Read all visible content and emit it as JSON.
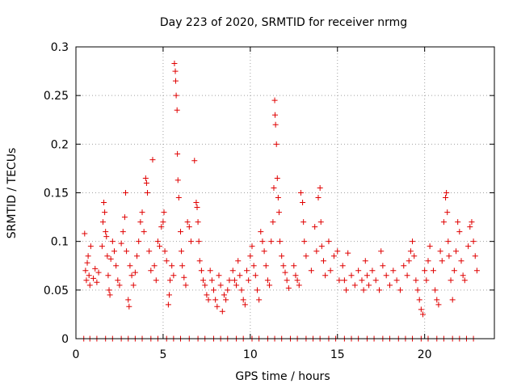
{
  "chart_data": {
    "type": "scatter",
    "title": "Day 223 of 2020, SRMTID for receiver nrmg",
    "xlabel": "GPS time / hours",
    "ylabel": "SRMTID / TECUs",
    "xlim": [
      0,
      24
    ],
    "ylim": [
      0,
      0.3
    ],
    "xticks": [
      0,
      5,
      10,
      15,
      20
    ],
    "xtick_labels": [
      "0",
      "5",
      "10",
      "15",
      "20"
    ],
    "yticks": [
      0,
      0.05,
      0.1,
      0.15,
      0.2,
      0.25,
      0.3
    ],
    "ytick_labels": [
      "0",
      "0.05",
      "0.1",
      "0.15",
      "0.2",
      "0.25",
      "0.3"
    ],
    "grid": true,
    "marker": "+",
    "color": "#e00000",
    "series": [
      {
        "name": "SRMTID",
        "points": [
          [
            0.5,
            0.108
          ],
          [
            0.55,
            0.07
          ],
          [
            0.6,
            0.06
          ],
          [
            0.65,
            0.078
          ],
          [
            0.7,
            0.085
          ],
          [
            0.75,
            0.065
          ],
          [
            0.8,
            0.055
          ],
          [
            0.85,
            0.095
          ],
          [
            1.0,
            0.062
          ],
          [
            1.1,
            0.072
          ],
          [
            1.2,
            0.058
          ],
          [
            1.3,
            0.068
          ],
          [
            1.5,
            0.095
          ],
          [
            1.55,
            0.12
          ],
          [
            1.6,
            0.14
          ],
          [
            1.65,
            0.13
          ],
          [
            1.7,
            0.11
          ],
          [
            1.75,
            0.105
          ],
          [
            1.8,
            0.085
          ],
          [
            1.85,
            0.065
          ],
          [
            1.9,
            0.05
          ],
          [
            1.95,
            0.045
          ],
          [
            2.0,
            0.082
          ],
          [
            2.1,
            0.1
          ],
          [
            2.2,
            0.09
          ],
          [
            2.3,
            0.075
          ],
          [
            2.4,
            0.06
          ],
          [
            2.5,
            0.055
          ],
          [
            2.6,
            0.098
          ],
          [
            2.7,
            0.11
          ],
          [
            2.8,
            0.125
          ],
          [
            2.85,
            0.15
          ],
          [
            2.9,
            0.09
          ],
          [
            3.0,
            0.04
          ],
          [
            3.05,
            0.033
          ],
          [
            3.1,
            0.075
          ],
          [
            3.2,
            0.065
          ],
          [
            3.3,
            0.055
          ],
          [
            3.4,
            0.068
          ],
          [
            3.5,
            0.085
          ],
          [
            3.6,
            0.1
          ],
          [
            3.7,
            0.12
          ],
          [
            3.8,
            0.13
          ],
          [
            3.9,
            0.11
          ],
          [
            4.0,
            0.165
          ],
          [
            4.05,
            0.16
          ],
          [
            4.1,
            0.15
          ],
          [
            4.2,
            0.09
          ],
          [
            4.3,
            0.07
          ],
          [
            4.4,
            0.184
          ],
          [
            4.5,
            0.075
          ],
          [
            4.6,
            0.06
          ],
          [
            4.7,
            0.1
          ],
          [
            4.8,
            0.095
          ],
          [
            4.9,
            0.115
          ],
          [
            5.0,
            0.12
          ],
          [
            5.05,
            0.13
          ],
          [
            5.1,
            0.09
          ],
          [
            5.2,
            0.08
          ],
          [
            5.3,
            0.035
          ],
          [
            5.35,
            0.045
          ],
          [
            5.4,
            0.06
          ],
          [
            5.5,
            0.075
          ],
          [
            5.6,
            0.065
          ],
          [
            5.65,
            0.283
          ],
          [
            5.7,
            0.275
          ],
          [
            5.72,
            0.265
          ],
          [
            5.75,
            0.25
          ],
          [
            5.8,
            0.235
          ],
          [
            5.82,
            0.19
          ],
          [
            5.85,
            0.163
          ],
          [
            5.9,
            0.145
          ],
          [
            6.0,
            0.11
          ],
          [
            6.05,
            0.09
          ],
          [
            6.1,
            0.075
          ],
          [
            6.2,
            0.063
          ],
          [
            6.3,
            0.055
          ],
          [
            6.4,
            0.12
          ],
          [
            6.5,
            0.115
          ],
          [
            6.6,
            0.1
          ],
          [
            6.8,
            0.183
          ],
          [
            6.9,
            0.14
          ],
          [
            6.95,
            0.135
          ],
          [
            7.0,
            0.12
          ],
          [
            7.05,
            0.1
          ],
          [
            7.1,
            0.08
          ],
          [
            7.2,
            0.07
          ],
          [
            7.3,
            0.06
          ],
          [
            7.4,
            0.055
          ],
          [
            7.5,
            0.045
          ],
          [
            7.6,
            0.04
          ],
          [
            7.7,
            0.07
          ],
          [
            7.8,
            0.06
          ],
          [
            7.9,
            0.05
          ],
          [
            8.0,
            0.04
          ],
          [
            8.1,
            0.033
          ],
          [
            8.2,
            0.065
          ],
          [
            8.3,
            0.055
          ],
          [
            8.4,
            0.028
          ],
          [
            8.5,
            0.045
          ],
          [
            8.6,
            0.04
          ],
          [
            8.7,
            0.05
          ],
          [
            8.8,
            0.06
          ],
          [
            9.0,
            0.07
          ],
          [
            9.1,
            0.06
          ],
          [
            9.2,
            0.055
          ],
          [
            9.3,
            0.08
          ],
          [
            9.4,
            0.065
          ],
          [
            9.5,
            0.05
          ],
          [
            9.6,
            0.04
          ],
          [
            9.7,
            0.035
          ],
          [
            9.8,
            0.07
          ],
          [
            9.9,
            0.06
          ],
          [
            10.0,
            0.085
          ],
          [
            10.1,
            0.095
          ],
          [
            10.2,
            0.075
          ],
          [
            10.3,
            0.065
          ],
          [
            10.4,
            0.05
          ],
          [
            10.5,
            0.04
          ],
          [
            10.6,
            0.11
          ],
          [
            10.7,
            0.1
          ],
          [
            10.8,
            0.09
          ],
          [
            10.9,
            0.075
          ],
          [
            11.0,
            0.06
          ],
          [
            11.1,
            0.055
          ],
          [
            11.2,
            0.1
          ],
          [
            11.3,
            0.12
          ],
          [
            11.35,
            0.155
          ],
          [
            11.4,
            0.245
          ],
          [
            11.42,
            0.23
          ],
          [
            11.45,
            0.22
          ],
          [
            11.5,
            0.2
          ],
          [
            11.55,
            0.165
          ],
          [
            11.6,
            0.145
          ],
          [
            11.65,
            0.13
          ],
          [
            11.7,
            0.1
          ],
          [
            11.8,
            0.085
          ],
          [
            11.9,
            0.075
          ],
          [
            12.0,
            0.068
          ],
          [
            12.1,
            0.06
          ],
          [
            12.2,
            0.052
          ],
          [
            12.5,
            0.075
          ],
          [
            12.6,
            0.065
          ],
          [
            12.7,
            0.06
          ],
          [
            12.8,
            0.055
          ],
          [
            12.9,
            0.15
          ],
          [
            13.0,
            0.14
          ],
          [
            13.05,
            0.12
          ],
          [
            13.1,
            0.1
          ],
          [
            13.2,
            0.085
          ],
          [
            13.5,
            0.07
          ],
          [
            13.7,
            0.115
          ],
          [
            13.8,
            0.09
          ],
          [
            13.9,
            0.145
          ],
          [
            14.0,
            0.155
          ],
          [
            14.05,
            0.12
          ],
          [
            14.1,
            0.095
          ],
          [
            14.2,
            0.08
          ],
          [
            14.3,
            0.065
          ],
          [
            14.5,
            0.1
          ],
          [
            14.6,
            0.07
          ],
          [
            14.8,
            0.085
          ],
          [
            15.0,
            0.09
          ],
          [
            15.1,
            0.06
          ],
          [
            15.3,
            0.075
          ],
          [
            15.4,
            0.06
          ],
          [
            15.5,
            0.05
          ],
          [
            15.6,
            0.088
          ],
          [
            15.8,
            0.065
          ],
          [
            16.0,
            0.055
          ],
          [
            16.2,
            0.07
          ],
          [
            16.4,
            0.06
          ],
          [
            16.5,
            0.05
          ],
          [
            16.6,
            0.08
          ],
          [
            16.7,
            0.065
          ],
          [
            16.8,
            0.055
          ],
          [
            17.0,
            0.07
          ],
          [
            17.2,
            0.06
          ],
          [
            17.4,
            0.05
          ],
          [
            17.5,
            0.09
          ],
          [
            17.6,
            0.075
          ],
          [
            17.8,
            0.065
          ],
          [
            18.0,
            0.055
          ],
          [
            18.2,
            0.07
          ],
          [
            18.4,
            0.06
          ],
          [
            18.6,
            0.05
          ],
          [
            18.8,
            0.075
          ],
          [
            19.0,
            0.065
          ],
          [
            19.1,
            0.08
          ],
          [
            19.2,
            0.09
          ],
          [
            19.3,
            0.1
          ],
          [
            19.4,
            0.085
          ],
          [
            19.5,
            0.06
          ],
          [
            19.6,
            0.05
          ],
          [
            19.7,
            0.04
          ],
          [
            19.8,
            0.03
          ],
          [
            19.9,
            0.025
          ],
          [
            20.0,
            0.07
          ],
          [
            20.1,
            0.06
          ],
          [
            20.2,
            0.08
          ],
          [
            20.3,
            0.095
          ],
          [
            20.5,
            0.07
          ],
          [
            20.6,
            0.05
          ],
          [
            20.7,
            0.04
          ],
          [
            20.8,
            0.035
          ],
          [
            20.9,
            0.09
          ],
          [
            21.0,
            0.08
          ],
          [
            21.1,
            0.12
          ],
          [
            21.2,
            0.145
          ],
          [
            21.25,
            0.15
          ],
          [
            21.3,
            0.13
          ],
          [
            21.35,
            0.1
          ],
          [
            21.4,
            0.085
          ],
          [
            21.5,
            0.06
          ],
          [
            21.6,
            0.04
          ],
          [
            21.7,
            0.07
          ],
          [
            21.8,
            0.09
          ],
          [
            21.9,
            0.12
          ],
          [
            22.0,
            0.11
          ],
          [
            22.1,
            0.08
          ],
          [
            22.2,
            0.065
          ],
          [
            22.3,
            0.06
          ],
          [
            22.5,
            0.095
          ],
          [
            22.6,
            0.115
          ],
          [
            22.7,
            0.12
          ],
          [
            22.8,
            0.1
          ],
          [
            22.9,
            0.085
          ],
          [
            23.0,
            0.07
          ],
          [
            0.45,
            0.0
          ],
          [
            0.8,
            0.0
          ],
          [
            1.2,
            0.0
          ],
          [
            1.7,
            0.0
          ],
          [
            2.1,
            0.0
          ],
          [
            2.6,
            0.0
          ],
          [
            3.0,
            0.0
          ],
          [
            3.4,
            0.0
          ],
          [
            3.8,
            0.0
          ],
          [
            4.3,
            0.0
          ],
          [
            4.7,
            0.0
          ],
          [
            5.2,
            0.0
          ],
          [
            5.6,
            0.0
          ],
          [
            6.0,
            0.0
          ],
          [
            6.5,
            0.0
          ],
          [
            7.0,
            0.0
          ],
          [
            7.4,
            0.0
          ],
          [
            7.9,
            0.0
          ],
          [
            8.3,
            0.0
          ],
          [
            8.7,
            0.0
          ],
          [
            9.2,
            0.0
          ],
          [
            9.6,
            0.0
          ],
          [
            10.1,
            0.0
          ],
          [
            10.5,
            0.0
          ],
          [
            11.0,
            0.0
          ],
          [
            11.4,
            0.0
          ],
          [
            11.8,
            0.0
          ],
          [
            12.3,
            0.0
          ],
          [
            12.7,
            0.0
          ],
          [
            13.2,
            0.0
          ],
          [
            13.6,
            0.0
          ],
          [
            14.0,
            0.0
          ],
          [
            14.5,
            0.0
          ],
          [
            14.9,
            0.0
          ],
          [
            15.4,
            0.0
          ],
          [
            15.8,
            0.0
          ],
          [
            16.2,
            0.0
          ],
          [
            16.7,
            0.0
          ],
          [
            17.1,
            0.0
          ],
          [
            17.6,
            0.0
          ],
          [
            18.0,
            0.0
          ],
          [
            18.5,
            0.0
          ],
          [
            18.9,
            0.0
          ],
          [
            19.3,
            0.0
          ],
          [
            19.8,
            0.0
          ],
          [
            20.2,
            0.0
          ],
          [
            20.7,
            0.0
          ],
          [
            21.1,
            0.0
          ],
          [
            21.6,
            0.0
          ],
          [
            22.0,
            0.0
          ],
          [
            22.4,
            0.0
          ],
          [
            22.8,
            0.0
          ]
        ]
      }
    ]
  }
}
